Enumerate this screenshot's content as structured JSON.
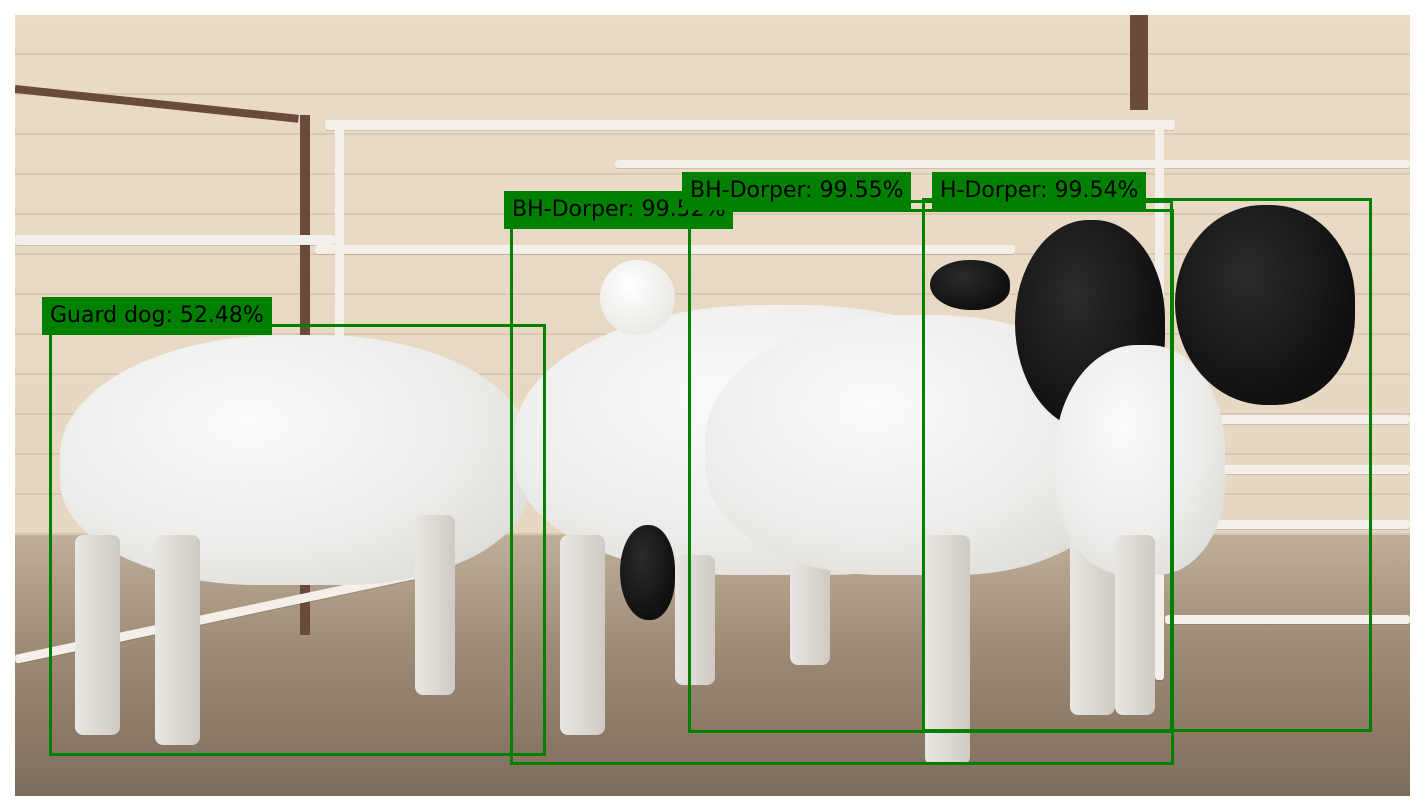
{
  "detections": [
    {
      "label": "Guard dog: 52.48%"
    },
    {
      "label": "BH-Dorper: 99.52%"
    },
    {
      "label": "BH-Dorper: 99.55%"
    },
    {
      "label": "H-Dorper: 99.54%"
    }
  ],
  "colors": {
    "box": "#008000",
    "label_background": "#008000",
    "label_text": "#000000"
  }
}
